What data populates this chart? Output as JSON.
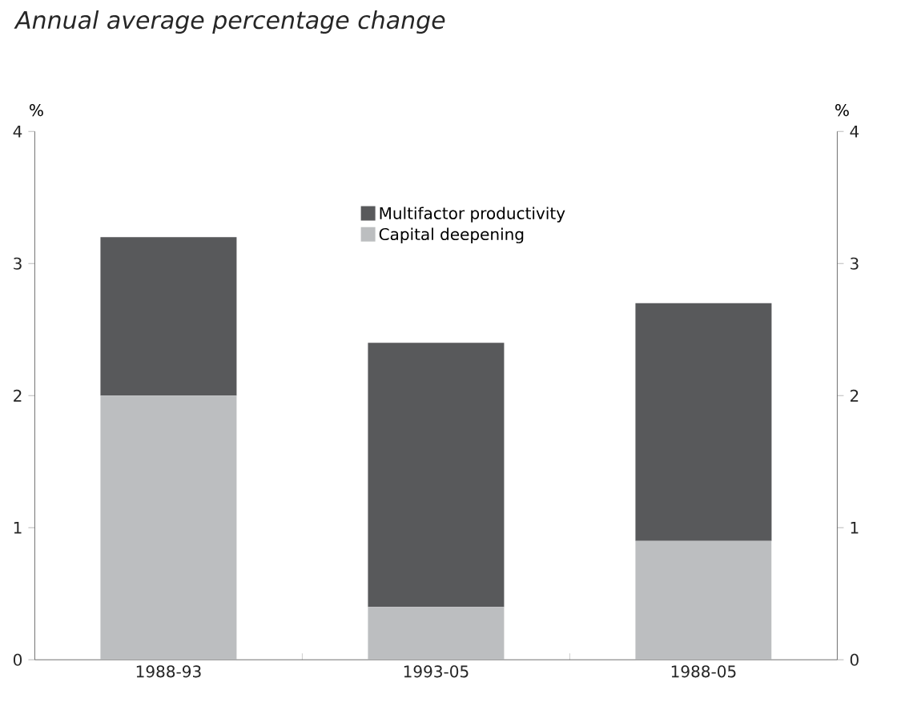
{
  "chart_data": {
    "type": "bar",
    "title": "Annual average percentage change",
    "ylabel": "%",
    "y2label": "%",
    "categories": [
      "1988-93",
      "1993-05",
      "1988-05"
    ],
    "stacked": true,
    "series": [
      {
        "name": "Capital deepening",
        "color": "#bcbec0",
        "values": [
          2.0,
          0.4,
          0.9
        ]
      },
      {
        "name": "Multifactor productivity",
        "color": "#58595b",
        "values": [
          1.2,
          2.0,
          1.8
        ]
      }
    ],
    "ylim": [
      0,
      4
    ],
    "yticks": [
      0,
      1,
      2,
      3,
      4
    ],
    "y2lim": [
      0,
      4
    ],
    "y2ticks": [
      0,
      1,
      2,
      3,
      4
    ],
    "grid": false,
    "legend": "top"
  }
}
